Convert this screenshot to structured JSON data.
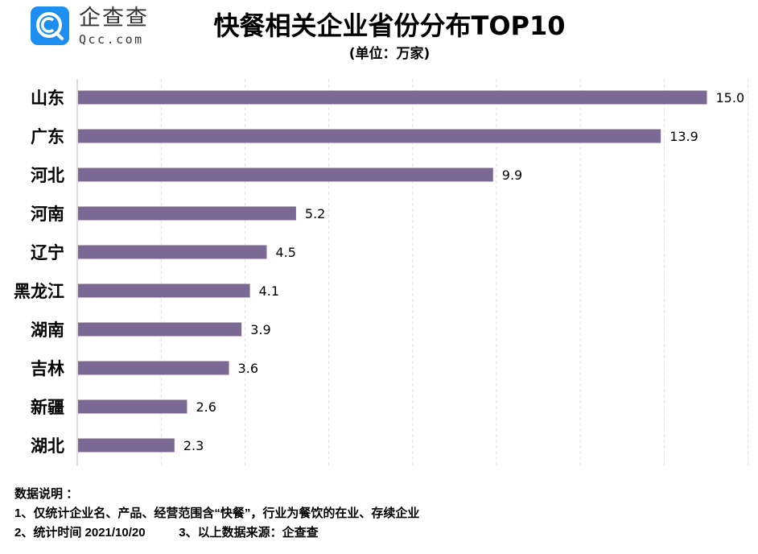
{
  "brand": {
    "name_cn": "企查查",
    "name_en": "Qcc.com",
    "color": "#1f8ef1"
  },
  "chart_data": {
    "type": "bar",
    "orientation": "horizontal",
    "title": "快餐相关企业省份分布TOP10",
    "subtitle": "(单位：万家)",
    "categories": [
      "山东",
      "广东",
      "河北",
      "河南",
      "辽宁",
      "黑龙江",
      "湖南",
      "吉林",
      "新疆",
      "湖北"
    ],
    "values": [
      15.0,
      13.9,
      9.9,
      5.2,
      4.5,
      4.1,
      3.9,
      3.6,
      2.6,
      2.3
    ],
    "data_labels": [
      "15.0",
      "13.9",
      "9.9",
      "5.2",
      "4.5",
      "4.1",
      "3.9",
      "3.6",
      "2.6",
      "2.3"
    ],
    "xlim": [
      0,
      16
    ],
    "grid": true,
    "grid_step": 2,
    "bar_color": "#7b6894",
    "xlabel": "",
    "ylabel": ""
  },
  "notes": {
    "heading": "数据说明 ：",
    "line1": "1、仅统计企业名、产品、经营范围含“快餐”，行业为餐饮的在业、存续企业",
    "line2": "2、统计时间 2021/10/20          3、以上数据来源：企查查"
  }
}
